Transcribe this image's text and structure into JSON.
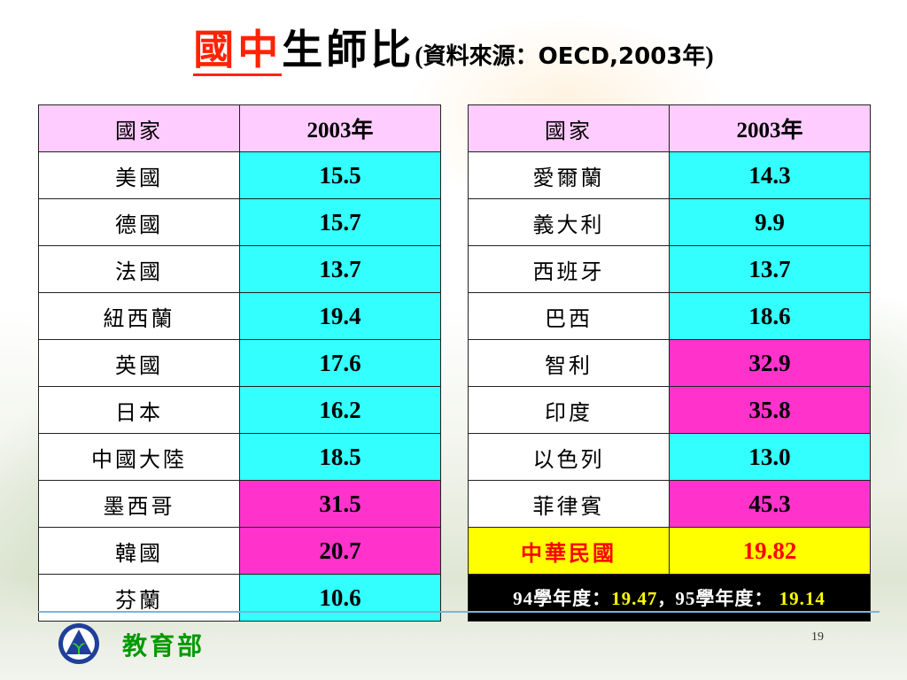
{
  "title": {
    "part1": "國中",
    "part2": "生師比",
    "paren_open": "(",
    "source": "資料來源：OECD,2003年",
    "paren_close": ")"
  },
  "table_left": {
    "headers": [
      "國家",
      "2003年"
    ],
    "rows": [
      {
        "country": "美國",
        "value": "15.5",
        "color": "#33ffff"
      },
      {
        "country": "德國",
        "value": "15.7",
        "color": "#33ffff"
      },
      {
        "country": "法國",
        "value": "13.7",
        "color": "#33ffff"
      },
      {
        "country": "紐西蘭",
        "value": "19.4",
        "color": "#33ffff"
      },
      {
        "country": "英國",
        "value": "17.6",
        "color": "#33ffff"
      },
      {
        "country": "日本",
        "value": "16.2",
        "color": "#33ffff"
      },
      {
        "country": "中國大陸",
        "value": "18.5",
        "color": "#33ffff"
      },
      {
        "country": "墨西哥",
        "value": "31.5",
        "color": "#ff33cc"
      },
      {
        "country": "韓國",
        "value": "20.7",
        "color": "#ff33cc"
      },
      {
        "country": "芬蘭",
        "value": "10.6",
        "color": "#33ffff"
      }
    ]
  },
  "table_right": {
    "headers": [
      "國家",
      "2003年"
    ],
    "rows": [
      {
        "country": "愛爾蘭",
        "value": "14.3",
        "color": "#33ffff"
      },
      {
        "country": "義大利",
        "value": "9.9",
        "color": "#33ffff"
      },
      {
        "country": "西班牙",
        "value": "13.7",
        "color": "#33ffff"
      },
      {
        "country": "巴西",
        "value": "18.6",
        "color": "#33ffff"
      },
      {
        "country": "智利",
        "value": "32.9",
        "color": "#ff33cc"
      },
      {
        "country": "印度",
        "value": "35.8",
        "color": "#ff33cc"
      },
      {
        "country": "以色列",
        "value": "13.0",
        "color": "#33ffff"
      },
      {
        "country": "菲律賓",
        "value": "45.3",
        "color": "#ff33cc"
      },
      {
        "country": "中華民國",
        "value": "19.82",
        "color": "#ffff00"
      }
    ],
    "note": {
      "label1": "94學年度：",
      "value1": "19.47",
      "sep": "，",
      "label2": "95學年度：",
      "value2": " 19.14"
    }
  },
  "footer": {
    "ministry": "教育部",
    "page_number": "19"
  },
  "colors": {
    "header_bg": "#ffccff",
    "normal": "#33ffff",
    "high": "#ff33cc",
    "taiwan": "#ffff00",
    "title_red": "#ff2200",
    "ministry_green": "#009900"
  }
}
